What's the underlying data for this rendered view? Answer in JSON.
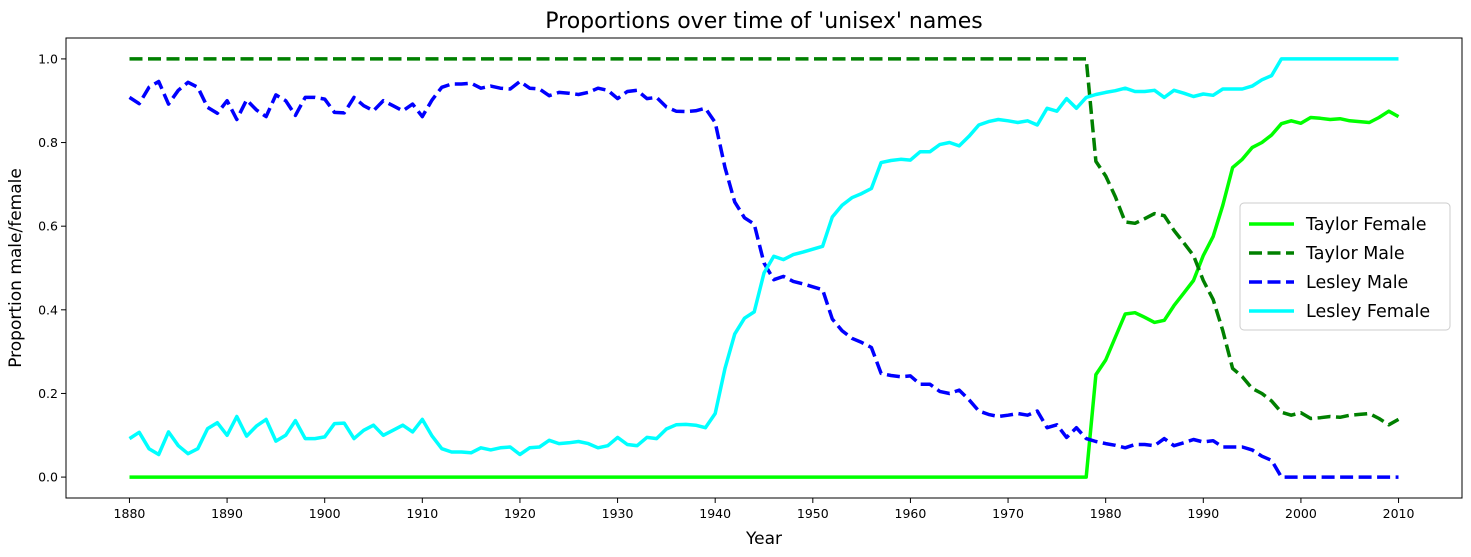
{
  "chart_data": {
    "type": "line",
    "title": "Proportions over time of 'unisex' names",
    "xlabel": "Year",
    "ylabel": "Proportion male/female",
    "xlim": [
      1873.5,
      2016.5
    ],
    "ylim": [
      -0.05,
      1.05
    ],
    "xticks": [
      1880,
      1890,
      1900,
      1910,
      1920,
      1930,
      1940,
      1950,
      1960,
      1970,
      1980,
      1990,
      2000,
      2010
    ],
    "yticks": [
      0.0,
      0.2,
      0.4,
      0.6,
      0.8,
      1.0
    ],
    "ytick_labels": [
      "0.0",
      "0.2",
      "0.4",
      "0.6",
      "0.8",
      "1.0"
    ],
    "grid": false,
    "legend_position": "center-right",
    "series": [
      {
        "name": "Taylor Female",
        "color": "#00ff00",
        "style": "solid",
        "points": [
          [
            1880,
            0
          ],
          [
            1978,
            0
          ],
          [
            1979,
            0.245
          ],
          [
            1980,
            0.28
          ],
          [
            1981,
            0.335
          ],
          [
            1982,
            0.39
          ],
          [
            1983,
            0.393
          ],
          [
            1984,
            0.382
          ],
          [
            1985,
            0.37
          ],
          [
            1986,
            0.375
          ],
          [
            1987,
            0.41
          ],
          [
            1988,
            0.44
          ],
          [
            1989,
            0.47
          ],
          [
            1990,
            0.53
          ],
          [
            1991,
            0.575
          ],
          [
            1992,
            0.65
          ],
          [
            1993,
            0.74
          ],
          [
            1994,
            0.76
          ],
          [
            1995,
            0.788
          ],
          [
            1996,
            0.8
          ],
          [
            1997,
            0.818
          ],
          [
            1998,
            0.845
          ],
          [
            1999,
            0.852
          ],
          [
            2000,
            0.846
          ],
          [
            2001,
            0.86
          ],
          [
            2002,
            0.858
          ],
          [
            2003,
            0.855
          ],
          [
            2004,
            0.857
          ],
          [
            2005,
            0.852
          ],
          [
            2006,
            0.85
          ],
          [
            2007,
            0.848
          ],
          [
            2008,
            0.86
          ],
          [
            2009,
            0.875
          ],
          [
            2010,
            0.862
          ]
        ]
      },
      {
        "name": "Taylor Male",
        "color": "#008000",
        "style": "dashed",
        "points": [
          [
            1880,
            1.0
          ],
          [
            1978,
            1.0
          ],
          [
            1979,
            0.755
          ],
          [
            1980,
            0.72
          ],
          [
            1981,
            0.67
          ],
          [
            1982,
            0.61
          ],
          [
            1983,
            0.607
          ],
          [
            1984,
            0.618
          ],
          [
            1985,
            0.63
          ],
          [
            1986,
            0.625
          ],
          [
            1987,
            0.59
          ],
          [
            1988,
            0.56
          ],
          [
            1989,
            0.53
          ],
          [
            1990,
            0.47
          ],
          [
            1991,
            0.425
          ],
          [
            1992,
            0.35
          ],
          [
            1993,
            0.26
          ],
          [
            1994,
            0.24
          ],
          [
            1995,
            0.212
          ],
          [
            1996,
            0.2
          ],
          [
            1997,
            0.182
          ],
          [
            1998,
            0.155
          ],
          [
            1999,
            0.148
          ],
          [
            2000,
            0.154
          ],
          [
            2001,
            0.14
          ],
          [
            2002,
            0.142
          ],
          [
            2003,
            0.145
          ],
          [
            2004,
            0.143
          ],
          [
            2005,
            0.148
          ],
          [
            2006,
            0.15
          ],
          [
            2007,
            0.152
          ],
          [
            2008,
            0.14
          ],
          [
            2009,
            0.125
          ],
          [
            2010,
            0.138
          ]
        ]
      },
      {
        "name": "Lesley Male",
        "color": "#0000ff",
        "style": "dashed",
        "points": [
          [
            1880,
            0.908
          ],
          [
            1881,
            0.893
          ],
          [
            1882,
            0.932
          ],
          [
            1883,
            0.946
          ],
          [
            1884,
            0.892
          ],
          [
            1885,
            0.925
          ],
          [
            1886,
            0.944
          ],
          [
            1887,
            0.932
          ],
          [
            1888,
            0.884
          ],
          [
            1889,
            0.87
          ],
          [
            1890,
            0.9
          ],
          [
            1891,
            0.855
          ],
          [
            1892,
            0.902
          ],
          [
            1893,
            0.878
          ],
          [
            1894,
            0.862
          ],
          [
            1895,
            0.914
          ],
          [
            1896,
            0.9
          ],
          [
            1897,
            0.865
          ],
          [
            1898,
            0.908
          ],
          [
            1899,
            0.908
          ],
          [
            1900,
            0.904
          ],
          [
            1901,
            0.872
          ],
          [
            1902,
            0.871
          ],
          [
            1903,
            0.908
          ],
          [
            1904,
            0.888
          ],
          [
            1905,
            0.876
          ],
          [
            1906,
            0.9
          ],
          [
            1907,
            0.888
          ],
          [
            1908,
            0.876
          ],
          [
            1909,
            0.892
          ],
          [
            1910,
            0.862
          ],
          [
            1911,
            0.902
          ],
          [
            1912,
            0.932
          ],
          [
            1913,
            0.94
          ],
          [
            1914,
            0.94
          ],
          [
            1915,
            0.942
          ],
          [
            1916,
            0.93
          ],
          [
            1917,
            0.935
          ],
          [
            1918,
            0.93
          ],
          [
            1919,
            0.928
          ],
          [
            1920,
            0.946
          ],
          [
            1921,
            0.93
          ],
          [
            1922,
            0.928
          ],
          [
            1923,
            0.912
          ],
          [
            1924,
            0.92
          ],
          [
            1925,
            0.918
          ],
          [
            1926,
            0.915
          ],
          [
            1927,
            0.92
          ],
          [
            1928,
            0.93
          ],
          [
            1929,
            0.925
          ],
          [
            1930,
            0.905
          ],
          [
            1931,
            0.922
          ],
          [
            1932,
            0.925
          ],
          [
            1933,
            0.905
          ],
          [
            1934,
            0.908
          ],
          [
            1935,
            0.885
          ],
          [
            1936,
            0.875
          ],
          [
            1937,
            0.874
          ],
          [
            1938,
            0.876
          ],
          [
            1939,
            0.882
          ],
          [
            1940,
            0.848
          ],
          [
            1941,
            0.74
          ],
          [
            1942,
            0.658
          ],
          [
            1943,
            0.62
          ],
          [
            1944,
            0.605
          ],
          [
            1945,
            0.512
          ],
          [
            1946,
            0.472
          ],
          [
            1947,
            0.48
          ],
          [
            1948,
            0.468
          ],
          [
            1949,
            0.462
          ],
          [
            1950,
            0.455
          ],
          [
            1951,
            0.448
          ],
          [
            1952,
            0.378
          ],
          [
            1953,
            0.35
          ],
          [
            1954,
            0.332
          ],
          [
            1955,
            0.322
          ],
          [
            1956,
            0.31
          ],
          [
            1957,
            0.248
          ],
          [
            1958,
            0.243
          ],
          [
            1959,
            0.24
          ],
          [
            1960,
            0.242
          ],
          [
            1961,
            0.222
          ],
          [
            1962,
            0.222
          ],
          [
            1963,
            0.205
          ],
          [
            1964,
            0.2
          ],
          [
            1965,
            0.208
          ],
          [
            1966,
            0.185
          ],
          [
            1967,
            0.158
          ],
          [
            1968,
            0.15
          ],
          [
            1969,
            0.145
          ],
          [
            1970,
            0.148
          ],
          [
            1971,
            0.152
          ],
          [
            1972,
            0.148
          ],
          [
            1973,
            0.158
          ],
          [
            1974,
            0.118
          ],
          [
            1975,
            0.125
          ],
          [
            1976,
            0.095
          ],
          [
            1977,
            0.118
          ],
          [
            1978,
            0.092
          ],
          [
            1979,
            0.085
          ],
          [
            1980,
            0.08
          ],
          [
            1981,
            0.076
          ],
          [
            1982,
            0.07
          ],
          [
            1983,
            0.078
          ],
          [
            1984,
            0.078
          ],
          [
            1985,
            0.075
          ],
          [
            1986,
            0.092
          ],
          [
            1987,
            0.075
          ],
          [
            1988,
            0.082
          ],
          [
            1989,
            0.09
          ],
          [
            1990,
            0.084
          ],
          [
            1991,
            0.087
          ],
          [
            1992,
            0.072
          ],
          [
            1993,
            0.072
          ],
          [
            1994,
            0.072
          ],
          [
            1995,
            0.065
          ],
          [
            1996,
            0.05
          ],
          [
            1997,
            0.04
          ],
          [
            1998,
            0.0
          ],
          [
            2010,
            0.0
          ]
        ]
      },
      {
        "name": "Lesley Female",
        "color": "#00ffff",
        "style": "solid",
        "points": [
          [
            1880,
            0.092
          ],
          [
            1881,
            0.107
          ],
          [
            1882,
            0.068
          ],
          [
            1883,
            0.054
          ],
          [
            1884,
            0.108
          ],
          [
            1885,
            0.075
          ],
          [
            1886,
            0.056
          ],
          [
            1887,
            0.068
          ],
          [
            1888,
            0.116
          ],
          [
            1889,
            0.13
          ],
          [
            1890,
            0.1
          ],
          [
            1891,
            0.145
          ],
          [
            1892,
            0.098
          ],
          [
            1893,
            0.122
          ],
          [
            1894,
            0.138
          ],
          [
            1895,
            0.086
          ],
          [
            1896,
            0.1
          ],
          [
            1897,
            0.135
          ],
          [
            1898,
            0.092
          ],
          [
            1899,
            0.092
          ],
          [
            1900,
            0.096
          ],
          [
            1901,
            0.128
          ],
          [
            1902,
            0.129
          ],
          [
            1903,
            0.092
          ],
          [
            1904,
            0.112
          ],
          [
            1905,
            0.124
          ],
          [
            1906,
            0.1
          ],
          [
            1907,
            0.112
          ],
          [
            1908,
            0.124
          ],
          [
            1909,
            0.108
          ],
          [
            1910,
            0.138
          ],
          [
            1911,
            0.098
          ],
          [
            1912,
            0.068
          ],
          [
            1913,
            0.06
          ],
          [
            1914,
            0.06
          ],
          [
            1915,
            0.058
          ],
          [
            1916,
            0.07
          ],
          [
            1917,
            0.065
          ],
          [
            1918,
            0.07
          ],
          [
            1919,
            0.072
          ],
          [
            1920,
            0.054
          ],
          [
            1921,
            0.07
          ],
          [
            1922,
            0.072
          ],
          [
            1923,
            0.088
          ],
          [
            1924,
            0.08
          ],
          [
            1925,
            0.082
          ],
          [
            1926,
            0.085
          ],
          [
            1927,
            0.08
          ],
          [
            1928,
            0.07
          ],
          [
            1929,
            0.075
          ],
          [
            1930,
            0.095
          ],
          [
            1931,
            0.078
          ],
          [
            1932,
            0.075
          ],
          [
            1933,
            0.095
          ],
          [
            1934,
            0.092
          ],
          [
            1935,
            0.115
          ],
          [
            1936,
            0.125
          ],
          [
            1937,
            0.126
          ],
          [
            1938,
            0.124
          ],
          [
            1939,
            0.118
          ],
          [
            1940,
            0.152
          ],
          [
            1941,
            0.26
          ],
          [
            1942,
            0.342
          ],
          [
            1943,
            0.38
          ],
          [
            1944,
            0.395
          ],
          [
            1945,
            0.488
          ],
          [
            1946,
            0.528
          ],
          [
            1947,
            0.52
          ],
          [
            1948,
            0.532
          ],
          [
            1949,
            0.538
          ],
          [
            1950,
            0.545
          ],
          [
            1951,
            0.552
          ],
          [
            1952,
            0.622
          ],
          [
            1953,
            0.65
          ],
          [
            1954,
            0.668
          ],
          [
            1955,
            0.678
          ],
          [
            1956,
            0.69
          ],
          [
            1957,
            0.752
          ],
          [
            1958,
            0.757
          ],
          [
            1959,
            0.76
          ],
          [
            1960,
            0.758
          ],
          [
            1961,
            0.778
          ],
          [
            1962,
            0.778
          ],
          [
            1963,
            0.795
          ],
          [
            1964,
            0.8
          ],
          [
            1965,
            0.792
          ],
          [
            1966,
            0.815
          ],
          [
            1967,
            0.842
          ],
          [
            1968,
            0.85
          ],
          [
            1969,
            0.855
          ],
          [
            1970,
            0.852
          ],
          [
            1971,
            0.848
          ],
          [
            1972,
            0.852
          ],
          [
            1973,
            0.842
          ],
          [
            1974,
            0.882
          ],
          [
            1975,
            0.875
          ],
          [
            1976,
            0.905
          ],
          [
            1977,
            0.882
          ],
          [
            1978,
            0.908
          ],
          [
            1979,
            0.915
          ],
          [
            1980,
            0.92
          ],
          [
            1981,
            0.924
          ],
          [
            1982,
            0.93
          ],
          [
            1983,
            0.922
          ],
          [
            1984,
            0.922
          ],
          [
            1985,
            0.925
          ],
          [
            1986,
            0.908
          ],
          [
            1987,
            0.925
          ],
          [
            1988,
            0.918
          ],
          [
            1989,
            0.91
          ],
          [
            1990,
            0.916
          ],
          [
            1991,
            0.913
          ],
          [
            1992,
            0.928
          ],
          [
            1993,
            0.928
          ],
          [
            1994,
            0.928
          ],
          [
            1995,
            0.935
          ],
          [
            1996,
            0.95
          ],
          [
            1997,
            0.96
          ],
          [
            1998,
            1.0
          ],
          [
            2010,
            1.0
          ]
        ]
      }
    ]
  }
}
